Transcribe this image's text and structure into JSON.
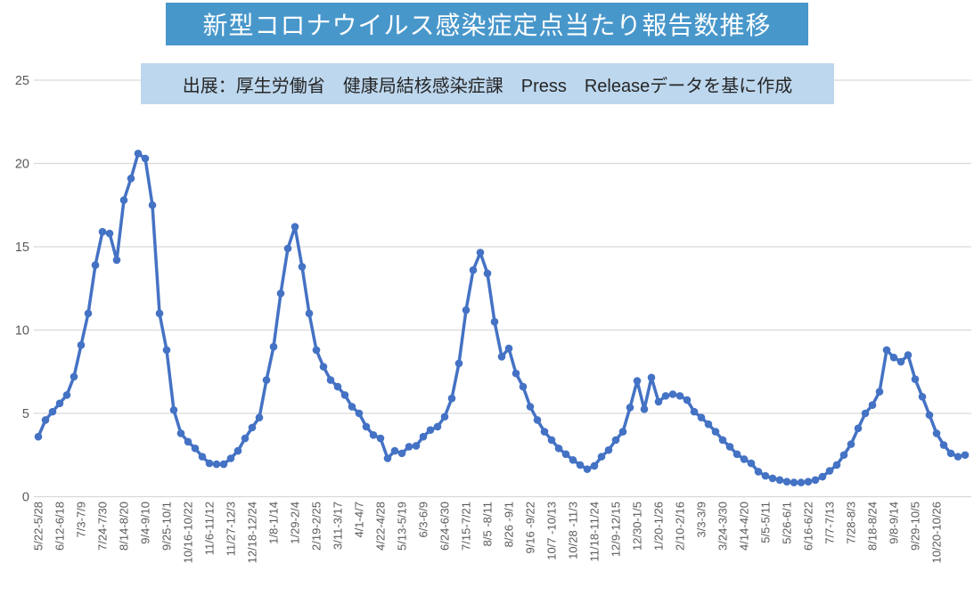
{
  "title": {
    "text": "新型コロナウイルス感染症定点当たり報告数推移"
  },
  "subtitle": {
    "text": "出展：厚生労働省　健康局結核感染症課　Press　Releaseデータを基に作成"
  },
  "colors": {
    "series_line": "#4472C4",
    "marker": "#4472C4",
    "title_banner_bg": "#4897CB",
    "title_banner_text": "#FFFFFF",
    "source_banner_bg": "#BDD7EE",
    "source_banner_text": "#262626",
    "gridline": "#D9D9D9",
    "axis_label": "#595959",
    "background": "#FFFFFF"
  },
  "chart_data": {
    "type": "line",
    "title": "新型コロナウイルス感染症定点当たり報告数推移",
    "source_note": "出展：厚生労働省　健康局結核感染症課　Press　Releaseデータを基に作成",
    "xlabel": "",
    "ylabel": "",
    "ylim": [
      0,
      25
    ],
    "y_ticks": [
      0,
      5,
      10,
      15,
      20,
      25
    ],
    "grid": "horizontal-only",
    "legend": "none",
    "marker": "circle",
    "x_tick_interval_points": 3,
    "x_tick_labels": [
      "5/22-5/28",
      "6/12-6/18",
      "7/3-7/9",
      "7/24-7/30",
      "8/14-8/20",
      "9/4-9/10",
      "9/25-10/1",
      "10/16-10/22",
      "11/6-11/12",
      "11/27-12/3",
      "12/18-12/24",
      "1/8-1/14",
      "1/29-2/4",
      "2/19-2/25",
      "3/11-3/17",
      "4/1-4/7",
      "4/22-4/28",
      "5/13-5/19",
      "6/3-6/9",
      "6/24-6/30",
      "7/15-7/21",
      "8/5 -8/11",
      "8/26 -9/1",
      "9/16 -9/22",
      "10/7 -10/13",
      "10/28 -11/3",
      "11/18-11/24",
      "12/9-12/15",
      "12/30-1/5",
      "1/20-1/26",
      "2/10-2/16",
      "3/3-3/9",
      "3/24-3/30",
      "4/14-4/20",
      "5/5-5/11",
      "5/26-6/1",
      "6/16-6/22",
      "7/7-7/13",
      "7/28-8/3",
      "8/18-8/24",
      "9/8-9/14",
      "9/29-10/5",
      "10/20-10/26"
    ],
    "values": [
      3.6,
      4.6,
      5.1,
      5.6,
      6.1,
      7.2,
      9.1,
      11.0,
      13.9,
      15.9,
      15.8,
      14.2,
      17.8,
      19.1,
      20.6,
      20.3,
      17.5,
      11.0,
      8.8,
      5.2,
      3.8,
      3.3,
      2.9,
      2.4,
      2.0,
      1.95,
      1.95,
      2.3,
      2.75,
      3.5,
      4.15,
      4.75,
      7.0,
      9.0,
      12.2,
      14.9,
      16.2,
      13.8,
      11.0,
      8.8,
      7.8,
      7.0,
      6.6,
      6.1,
      5.4,
      5.0,
      4.2,
      3.7,
      3.5,
      2.3,
      2.75,
      2.6,
      3.0,
      3.05,
      3.6,
      4.0,
      4.2,
      4.8,
      5.9,
      8.0,
      11.2,
      13.6,
      14.65,
      13.4,
      10.5,
      8.4,
      8.9,
      7.4,
      6.6,
      5.4,
      4.6,
      3.9,
      3.4,
      2.9,
      2.55,
      2.2,
      1.9,
      1.65,
      1.85,
      2.4,
      2.8,
      3.4,
      3.9,
      5.35,
      6.95,
      5.25,
      7.15,
      5.7,
      6.05,
      6.15,
      6.05,
      5.8,
      5.1,
      4.75,
      4.35,
      3.9,
      3.4,
      3.0,
      2.55,
      2.25,
      2.0,
      1.5,
      1.25,
      1.1,
      1.0,
      0.9,
      0.85,
      0.85,
      0.9,
      1.0,
      1.2,
      1.55,
      1.9,
      2.5,
      3.15,
      4.1,
      5.0,
      5.5,
      6.3,
      8.8,
      8.35,
      8.1,
      8.5,
      7.05,
      6.0,
      4.9,
      3.8,
      3.1,
      2.6,
      2.4,
      2.5
    ]
  }
}
